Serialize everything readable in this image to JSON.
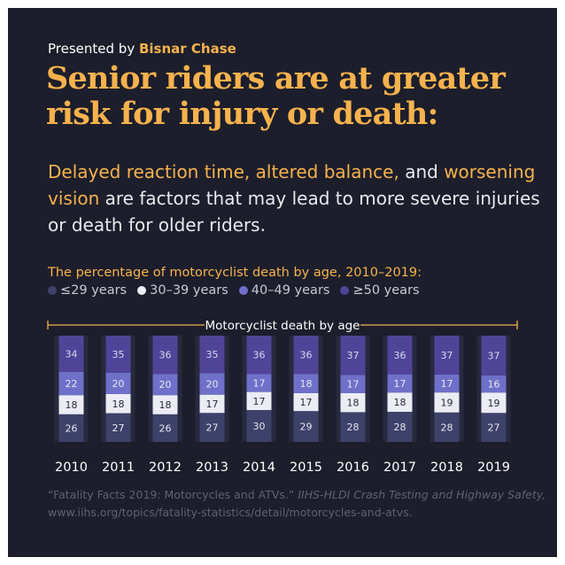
{
  "header": {
    "presented_prefix": "Presented by",
    "brand": "Bisnar Chase",
    "headline": "Senior riders are at greater risk for injury or death:"
  },
  "subhead": {
    "part1": "Delayed reaction time,",
    "part2": "altered balance,",
    "part3": "and",
    "part4": "worsening vision",
    "part5": "are factors that may lead to more severe injuries or death for older riders."
  },
  "colors": {
    "background": "#1c1e2b",
    "accent": "#f7b24d",
    "age_29": "#3e4169",
    "age_30_39": "#ececf5",
    "age_40_49": "#6e70c9",
    "age_50": "#504498"
  },
  "chart_data": {
    "type": "bar",
    "stacked": true,
    "title": "The percentage of motorcyclist death by age, 2010–2019:",
    "subtitle": "Motorcyclist death by age",
    "legend_position": "top-left",
    "categories": [
      "2010",
      "2011",
      "2012",
      "2013",
      "2014",
      "2015",
      "2016",
      "2017",
      "2018",
      "2019"
    ],
    "series": [
      {
        "name": "≤29 years",
        "values": [
          26,
          27,
          26,
          27,
          30,
          29,
          28,
          28,
          28,
          27
        ]
      },
      {
        "name": "30–39 years",
        "values": [
          18,
          18,
          18,
          17,
          17,
          17,
          18,
          18,
          19,
          19
        ]
      },
      {
        "name": "40–49 years",
        "values": [
          22,
          20,
          20,
          20,
          17,
          18,
          17,
          17,
          17,
          16
        ]
      },
      {
        "name": "≥50 years",
        "values": [
          34,
          35,
          36,
          35,
          36,
          36,
          37,
          36,
          37,
          37
        ]
      }
    ],
    "ylim": [
      0,
      100
    ]
  },
  "source": {
    "title": "“Fatality Facts 2019: Motorcycles and ATVs.”",
    "publisher": "IIHS-HLDI Crash Testing and Highway Safety,",
    "url": "www.iihs.org/topics/fatality-statistics/detail/motorcycles-and-atvs."
  }
}
